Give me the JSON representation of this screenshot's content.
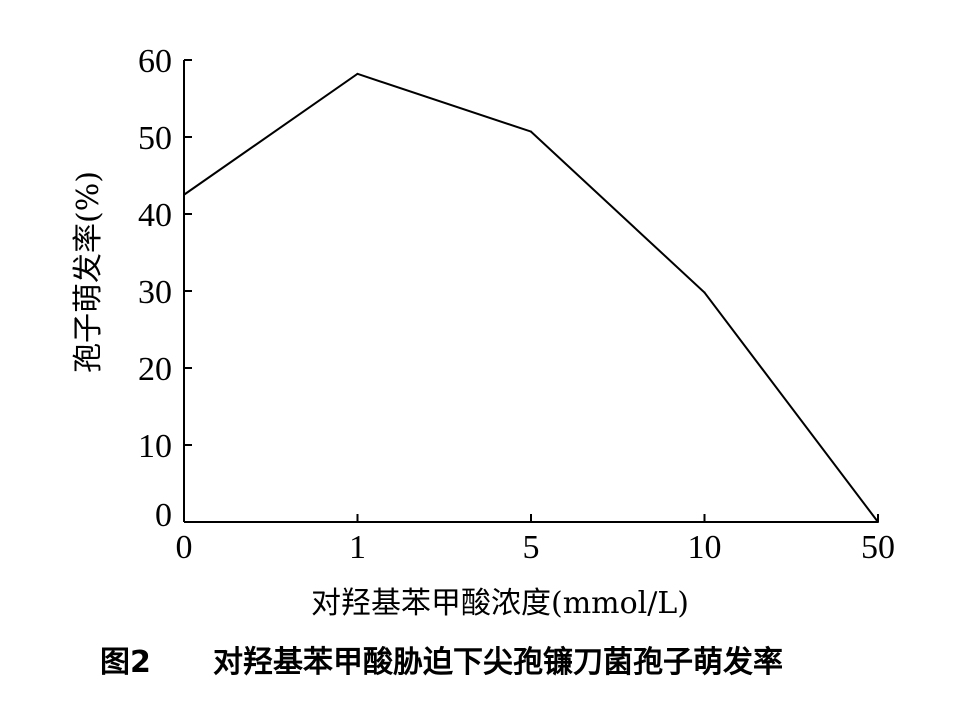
{
  "chart_data": {
    "type": "line",
    "categories": [
      "0",
      "1",
      "5",
      "10",
      "50"
    ],
    "series": [
      {
        "values": [
          42.5,
          58.2,
          50.7,
          29.8,
          0
        ]
      }
    ],
    "xlabel": "对羟基苯甲酸浓度(mmol/L)",
    "ylabel": "孢子萌发率(%)",
    "ylim": [
      0,
      60
    ],
    "yticks": [
      0,
      10,
      20,
      30,
      40,
      50,
      60
    ],
    "grid": false,
    "line_color": "#000000"
  },
  "caption": {
    "figure_number": "图2",
    "title": "对羟基苯甲酸胁迫下尖孢镰刀菌孢子萌发率"
  }
}
